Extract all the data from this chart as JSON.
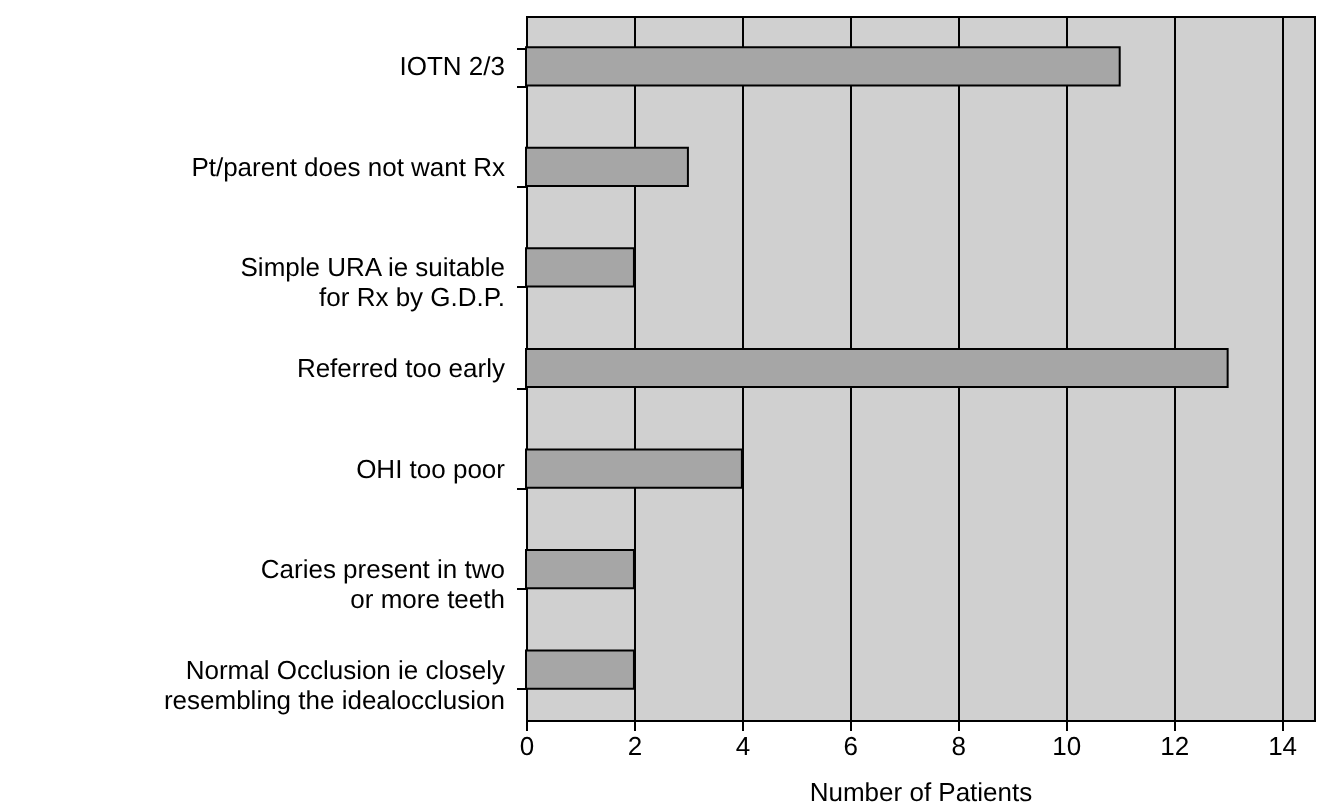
{
  "chart_data": {
    "type": "bar",
    "orientation": "horizontal",
    "xlabel": "Number of Patients",
    "categories": [
      "IOTN 2/3",
      "Pt/parent does not want Rx",
      "Simple URA ie suitable\nfor Rx by G.D.P.",
      "Referred too early",
      "OHI too poor",
      "Caries present in two\nor more teeth",
      "Normal Occlusion ie closely\nresembling the idealocclusion"
    ],
    "values": [
      11,
      3,
      2,
      13,
      4,
      2,
      2
    ],
    "color": "#a6a6a6",
    "xlim": [
      0,
      14.6
    ],
    "xticks": [
      0,
      2,
      4,
      6,
      8,
      10,
      12,
      14
    ],
    "grid": "x"
  }
}
